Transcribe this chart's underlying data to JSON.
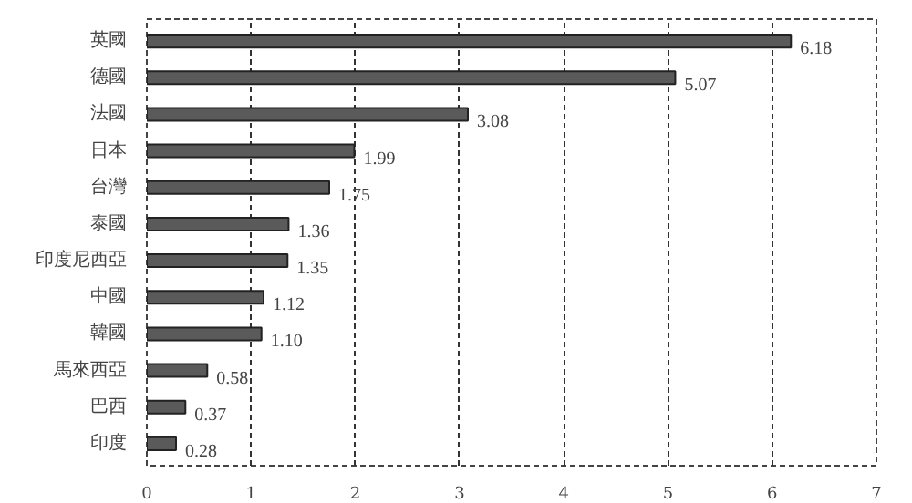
{
  "chart_data": {
    "type": "bar",
    "orientation": "horizontal",
    "categories": [
      "英國",
      "德國",
      "法國",
      "日本",
      "台灣",
      "泰國",
      "印度尼西亞",
      "中國",
      "韓國",
      "馬來西亞",
      "巴西",
      "印度"
    ],
    "values": [
      6.18,
      5.07,
      3.08,
      1.99,
      1.75,
      1.36,
      1.35,
      1.12,
      1.1,
      0.58,
      0.37,
      0.28
    ],
    "value_labels": [
      "6.18",
      "5.07",
      "3.08",
      "1.99",
      "1.75",
      "1.36",
      "1.35",
      "1.12",
      "1.10",
      "0.58",
      "0.37",
      "0.28"
    ],
    "color": "#5a5a5a",
    "xlim": [
      0,
      7
    ],
    "xticks": [
      0,
      1,
      2,
      3,
      4,
      5,
      6,
      7
    ],
    "grid": "x"
  }
}
